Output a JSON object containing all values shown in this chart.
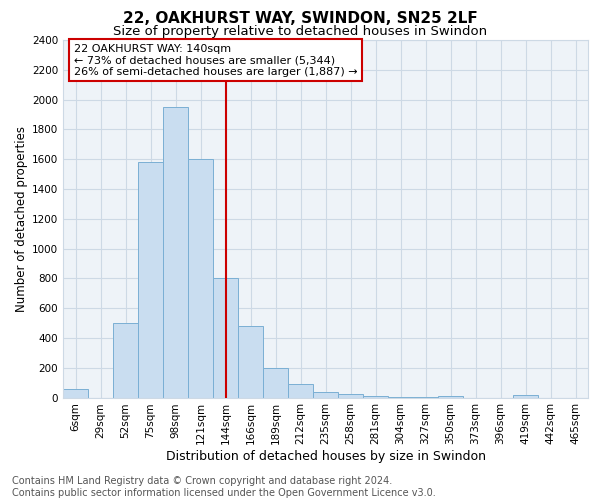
{
  "title1": "22, OAKHURST WAY, SWINDON, SN25 2LF",
  "title2": "Size of property relative to detached houses in Swindon",
  "xlabel": "Distribution of detached houses by size in Swindon",
  "ylabel": "Number of detached properties",
  "categories": [
    "6sqm",
    "29sqm",
    "52sqm",
    "75sqm",
    "98sqm",
    "121sqm",
    "144sqm",
    "166sqm",
    "189sqm",
    "212sqm",
    "235sqm",
    "258sqm",
    "281sqm",
    "304sqm",
    "327sqm",
    "350sqm",
    "373sqm",
    "396sqm",
    "419sqm",
    "442sqm",
    "465sqm"
  ],
  "values": [
    60,
    0,
    500,
    1580,
    1950,
    1600,
    800,
    480,
    195,
    90,
    35,
    25,
    10,
    5,
    3,
    12,
    0,
    0,
    15,
    0,
    0
  ],
  "bar_color": "#c9ddf0",
  "bar_edge_color": "#7aafd4",
  "vline_color": "#cc0000",
  "vline_category": "144sqm",
  "annotation_title": "22 OAKHURST WAY: 140sqm",
  "annotation_line1": "← 73% of detached houses are smaller (5,344)",
  "annotation_line2": "26% of semi-detached houses are larger (1,887) →",
  "annotation_box_color": "#cc0000",
  "ylim": [
    0,
    2400
  ],
  "yticks": [
    0,
    200,
    400,
    600,
    800,
    1000,
    1200,
    1400,
    1600,
    1800,
    2000,
    2200,
    2400
  ],
  "footer1": "Contains HM Land Registry data © Crown copyright and database right 2024.",
  "footer2": "Contains public sector information licensed under the Open Government Licence v3.0.",
  "grid_color": "#cdd9e5",
  "bg_color": "#eef3f8",
  "title1_fontsize": 11,
  "title2_fontsize": 9.5,
  "xlabel_fontsize": 9,
  "ylabel_fontsize": 8.5,
  "tick_fontsize": 7.5,
  "footer_fontsize": 7,
  "ann_fontsize": 8
}
